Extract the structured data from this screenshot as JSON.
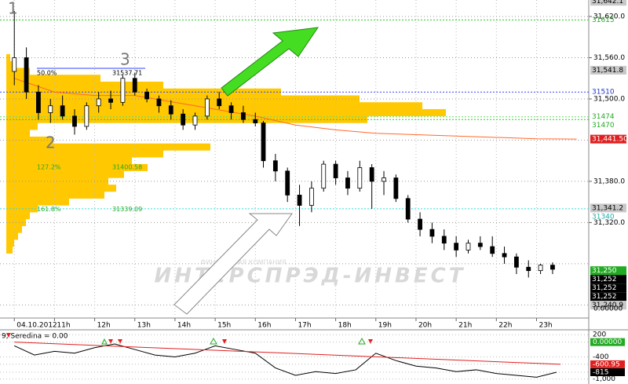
{
  "chart_data": {
    "type": "candlestick",
    "annotations": [
      "1",
      "2",
      "3"
    ],
    "watermark": "ИНТЕРСПРЭД-ИНВЕСТ",
    "watermark_sub": "ФИНАНСОВАЯ КОМПАНИЯ",
    "xlim": [
      9.8,
      24.3
    ],
    "xticks": [
      {
        "value": 10,
        "label": "04.10.2012"
      },
      {
        "value": 11,
        "label": "11h"
      },
      {
        "value": 12,
        "label": "12h"
      },
      {
        "value": 13,
        "label": "13h"
      },
      {
        "value": 14,
        "label": "14h"
      },
      {
        "value": 15,
        "label": "15h"
      },
      {
        "value": 16,
        "label": "16h"
      },
      {
        "value": 17,
        "label": "17h"
      },
      {
        "value": 18,
        "label": "18h"
      },
      {
        "value": 19,
        "label": "19h"
      },
      {
        "value": 20,
        "label": "20h"
      },
      {
        "value": 21,
        "label": "21h"
      },
      {
        "value": 22,
        "label": "22h"
      },
      {
        "value": 23,
        "label": "23h"
      }
    ],
    "ylim": [
      31181,
      31644
    ],
    "yticks": [
      {
        "value": 31620,
        "label": "31,620.0"
      },
      {
        "value": 31560,
        "label": "31,560.0"
      },
      {
        "value": 31500,
        "label": "31,500.0"
      },
      {
        "value": 31380,
        "label": "31,380.0"
      },
      {
        "value": 31320,
        "label": "31,320.0"
      }
    ],
    "grid_levels": [
      31440,
      31260,
      31200
    ],
    "grid": true,
    "axis_footer": "0.00000",
    "candles": {
      "x": [
        10.0,
        10.3,
        10.6,
        10.9,
        11.2,
        11.5,
        11.8,
        12.1,
        12.4,
        12.7,
        13.0,
        13.3,
        13.6,
        13.9,
        14.2,
        14.5,
        14.8,
        15.1,
        15.4,
        15.7,
        16.0,
        16.2,
        16.5,
        16.8,
        17.1,
        17.4,
        17.7,
        18.0,
        18.3,
        18.6,
        18.9,
        19.2,
        19.5,
        19.8,
        20.1,
        20.4,
        20.7,
        21.0,
        21.3,
        21.6,
        21.9,
        22.2,
        22.5,
        22.8,
        23.1,
        23.4
      ],
      "open": [
        31540,
        31560,
        31510,
        31480,
        31490,
        31475,
        31460,
        31490,
        31500,
        31495,
        31530,
        31510,
        31500,
        31490,
        31478,
        31462,
        31475,
        31500,
        31490,
        31480,
        31470,
        31465,
        31410,
        31395,
        31360,
        31345,
        31370,
        31405,
        31385,
        31370,
        31400,
        31380,
        31385,
        31355,
        31325,
        31310,
        31300,
        31290,
        31280,
        31290,
        31285,
        31275,
        31270,
        31255,
        31250,
        31258
      ],
      "high": [
        31628,
        31575,
        31520,
        31500,
        31505,
        31485,
        31495,
        31510,
        31512,
        31535,
        31538,
        31515,
        31505,
        31498,
        31485,
        31480,
        31505,
        31510,
        31495,
        31490,
        31480,
        31468,
        31420,
        31400,
        31375,
        31380,
        31410,
        31410,
        31395,
        31410,
        31405,
        31395,
        31390,
        31360,
        31335,
        31320,
        31310,
        31300,
        31295,
        31300,
        31300,
        31285,
        31275,
        31265,
        31260,
        31262
      ],
      "low": [
        31520,
        31500,
        31470,
        31465,
        31470,
        31448,
        31455,
        31480,
        31485,
        31490,
        31505,
        31495,
        31480,
        31470,
        31455,
        31455,
        31470,
        31485,
        31470,
        31465,
        31460,
        31400,
        31380,
        31350,
        31315,
        31335,
        31365,
        31375,
        31360,
        31365,
        31340,
        31360,
        31350,
        31320,
        31300,
        31290,
        31280,
        31270,
        31275,
        31280,
        31270,
        31260,
        31245,
        31240,
        31245,
        31245
      ],
      "close": [
        31560,
        31510,
        31480,
        31490,
        31475,
        31460,
        31490,
        31500,
        31495,
        31530,
        31510,
        31500,
        31490,
        31478,
        31462,
        31475,
        31500,
        31490,
        31480,
        31470,
        31465,
        31410,
        31395,
        31360,
        31345,
        31370,
        31405,
        31385,
        31370,
        31400,
        31380,
        31385,
        31355,
        31325,
        31310,
        31300,
        31290,
        31280,
        31290,
        31285,
        31275,
        31270,
        31255,
        31250,
        31258,
        31252
      ]
    },
    "moving_average": {
      "color": "#ff6a2a",
      "x": [
        10,
        11,
        12,
        13,
        14,
        15,
        16,
        17,
        18,
        19,
        20,
        21,
        22,
        23,
        24
      ],
      "values": [
        31530,
        31510,
        31505,
        31505,
        31495,
        31485,
        31475,
        31462,
        31455,
        31450,
        31448,
        31446,
        31444,
        31442,
        31441.5
      ]
    },
    "volume_profile": {
      "color": "#ffc800",
      "prices": [
        31560,
        31550,
        31540,
        31530,
        31520,
        31510,
        31500,
        31490,
        31480,
        31470,
        31460,
        31450,
        31440,
        31430,
        31420,
        31410,
        31400,
        31390,
        31380,
        31370,
        31360,
        31350,
        31340,
        31330,
        31320,
        31310,
        31300,
        31290,
        31280
      ],
      "values": [
        5,
        10,
        30,
        120,
        200,
        350,
        450,
        530,
        560,
        460,
        40,
        30,
        60,
        260,
        200,
        160,
        180,
        150,
        130,
        140,
        125,
        80,
        40,
        30,
        25,
        20,
        15,
        10,
        8
      ]
    },
    "fibonacci": [
      {
        "label": "50.0%",
        "value": 31537.71
      },
      {
        "label": "127.2%",
        "value": 31400.58
      },
      {
        "label": "161.8%",
        "value": 31339.09
      }
    ],
    "price_labels": [
      {
        "value": 31642.1,
        "label": "31,642.1",
        "color": "#000",
        "background": "#c8c8c8"
      },
      {
        "value": 31615,
        "label": "31615",
        "color": "#22aa22",
        "background": "none",
        "line": "#22cc22"
      },
      {
        "value": 31541.8,
        "label": "31,541.8",
        "color": "#000",
        "background": "#c8c8c8"
      },
      {
        "value": 31510,
        "label": "31510",
        "color": "#2233cc",
        "background": "none",
        "line": "#3344ff"
      },
      {
        "value": 31474,
        "label": "31474",
        "color": "#22aa22",
        "background": "none",
        "line": "#66dd66"
      },
      {
        "value": 31470,
        "label": "31470",
        "color": "#22aa22",
        "background": "none",
        "line": "#22cc22"
      },
      {
        "value": 31441.5,
        "label": "31,441.50",
        "color": "#fff",
        "background": "#e02020"
      },
      {
        "value": 31341.2,
        "label": "31,341.2",
        "color": "#000",
        "background": "#c8c8c8"
      },
      {
        "value": 31340,
        "label": "31340",
        "color": "#22aaaa",
        "background": "none",
        "line": "#33dddd"
      },
      {
        "value": 31250,
        "label": "31,250",
        "color": "#fff",
        "background": "#22aa22"
      },
      {
        "value": 31252,
        "label": "31,252",
        "color": "#fff",
        "background": "#000"
      },
      {
        "value": 31252,
        "label": "31,252",
        "color": "#fff",
        "background": "#000"
      },
      {
        "value": 31252,
        "label": "31,252",
        "color": "#fff",
        "background": "#000"
      },
      {
        "value": 31240.9,
        "label": "31,240.9",
        "color": "#000",
        "background": "#c8c8c8"
      }
    ],
    "indicator": {
      "title": "9, Seredina = 0.00",
      "color": "#000",
      "ylim": [
        -1070,
        290
      ],
      "yticks": [
        {
          "value": 200,
          "label": "200",
          "background": "none",
          "color": "#000"
        },
        {
          "value": 0,
          "label": "0.00000",
          "background": "#22aa22",
          "color": "#fff"
        },
        {
          "value": -400,
          "label": "-400",
          "background": "none",
          "color": "#000"
        },
        {
          "value": -600.95,
          "label": "-600.95",
          "background": "#e02020",
          "color": "#fff"
        },
        {
          "value": -815,
          "label": "-815",
          "background": "#000",
          "color": "#fff"
        },
        {
          "value": -1000,
          "label": "-1,000",
          "background": "none",
          "color": "#000"
        }
      ],
      "x": [
        10,
        10.5,
        11,
        11.5,
        12,
        12.5,
        13,
        13.5,
        14,
        14.5,
        15,
        15.5,
        16,
        16.5,
        17,
        17.5,
        18,
        18.5,
        19,
        19.5,
        20,
        20.5,
        21,
        21.5,
        22,
        22.5,
        23,
        23.5
      ],
      "values": [
        -100,
        -350,
        -250,
        -300,
        -150,
        -50,
        -200,
        -350,
        -400,
        -300,
        -100,
        -200,
        -300,
        -700,
        -900,
        -800,
        -850,
        -750,
        -300,
        -500,
        -650,
        -700,
        -800,
        -750,
        -850,
        -900,
        -950,
        -815
      ],
      "trend": {
        "color": "#e02020",
        "x": [
          10,
          23.6
        ],
        "values": [
          0,
          -600.95
        ]
      }
    }
  }
}
